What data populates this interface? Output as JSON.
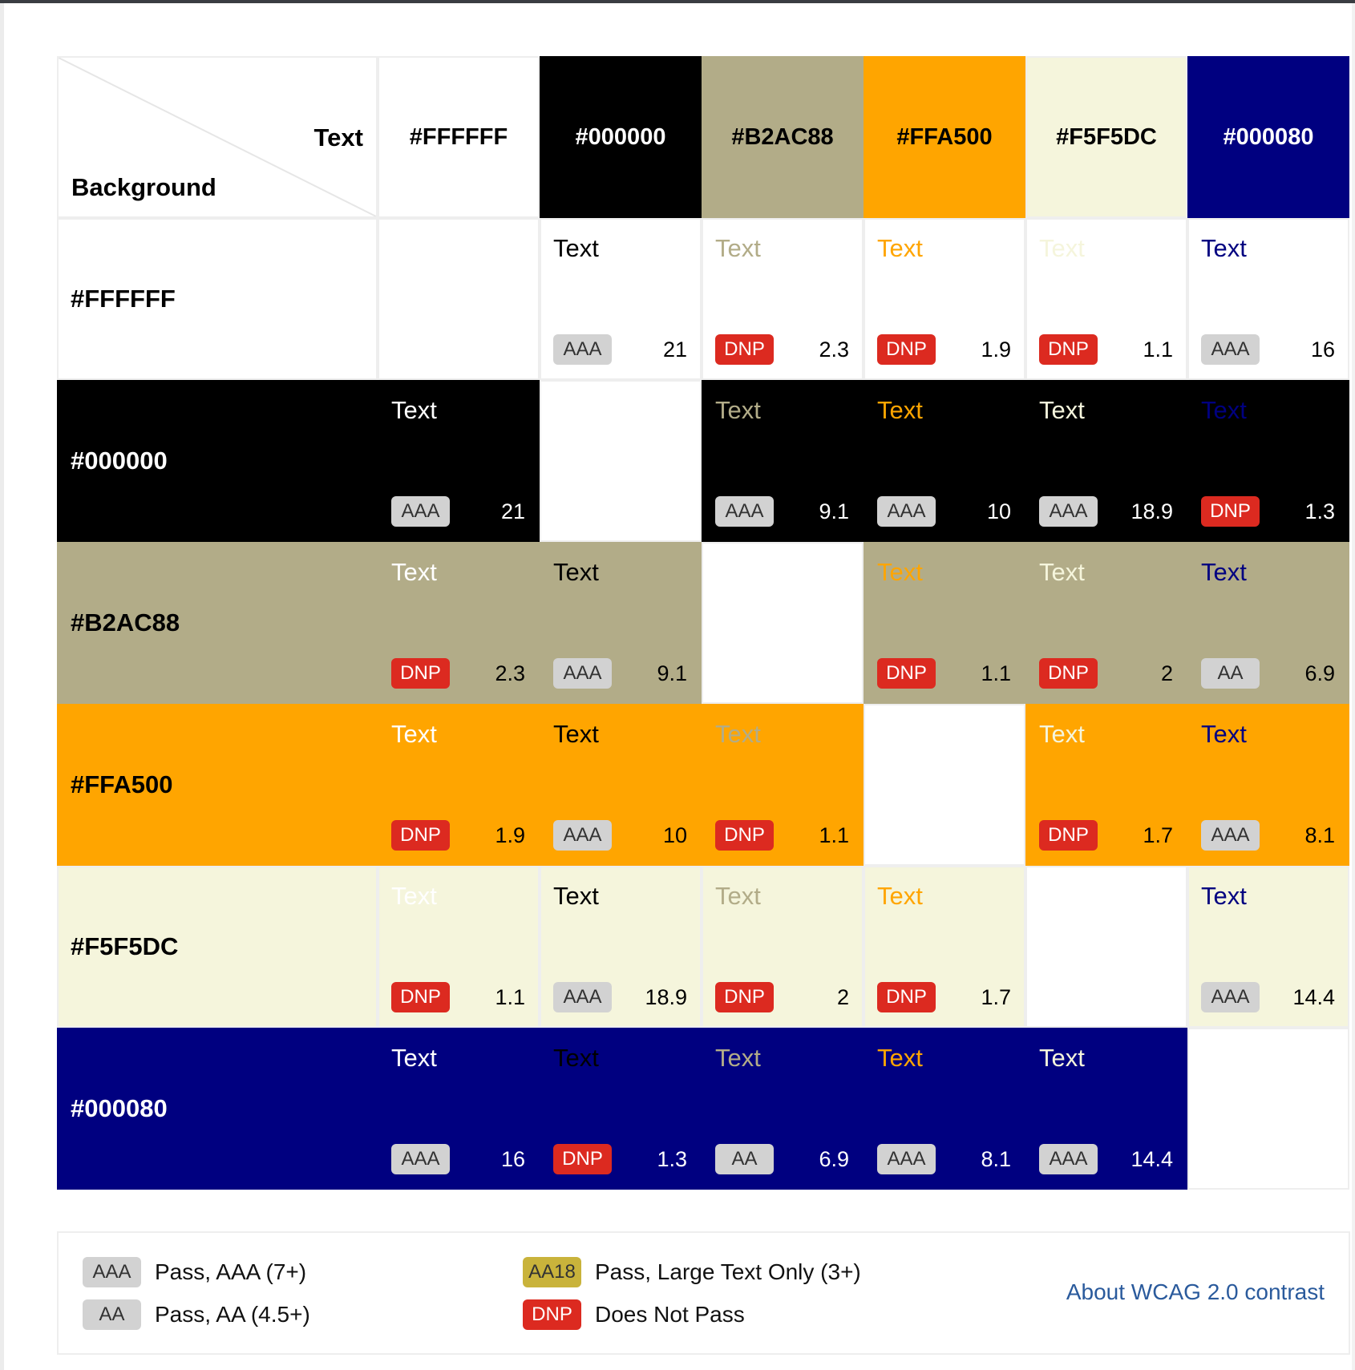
{
  "corner": {
    "text_label": "Text",
    "background_label": "Background"
  },
  "colors": [
    "#FFFFFF",
    "#000000",
    "#B2AC88",
    "#FFA500",
    "#F5F5DC",
    "#000080"
  ],
  "header_text_colors": [
    "#000000",
    "#FFFFFF",
    "#000000",
    "#000000",
    "#000000",
    "#FFFFFF"
  ],
  "sample_text": "Text",
  "badge_styles": {
    "pass": "#D2D2D2",
    "aa18": "#C9B33B",
    "dnp": "#DC2A20"
  },
  "matrix": [
    [
      null,
      {
        "badge": "AAA",
        "ratio": "21"
      },
      {
        "badge": "DNP",
        "ratio": "2.3"
      },
      {
        "badge": "DNP",
        "ratio": "1.9"
      },
      {
        "badge": "DNP",
        "ratio": "1.1"
      },
      {
        "badge": "AAA",
        "ratio": "16"
      }
    ],
    [
      {
        "badge": "AAA",
        "ratio": "21"
      },
      null,
      {
        "badge": "AAA",
        "ratio": "9.1"
      },
      {
        "badge": "AAA",
        "ratio": "10"
      },
      {
        "badge": "AAA",
        "ratio": "18.9"
      },
      {
        "badge": "DNP",
        "ratio": "1.3"
      }
    ],
    [
      {
        "badge": "DNP",
        "ratio": "2.3"
      },
      {
        "badge": "AAA",
        "ratio": "9.1"
      },
      null,
      {
        "badge": "DNP",
        "ratio": "1.1"
      },
      {
        "badge": "DNP",
        "ratio": "2"
      },
      {
        "badge": "AA",
        "ratio": "6.9"
      }
    ],
    [
      {
        "badge": "DNP",
        "ratio": "1.9"
      },
      {
        "badge": "AAA",
        "ratio": "10"
      },
      {
        "badge": "DNP",
        "ratio": "1.1"
      },
      null,
      {
        "badge": "DNP",
        "ratio": "1.7"
      },
      {
        "badge": "AAA",
        "ratio": "8.1"
      }
    ],
    [
      {
        "badge": "DNP",
        "ratio": "1.1"
      },
      {
        "badge": "AAA",
        "ratio": "18.9"
      },
      {
        "badge": "DNP",
        "ratio": "2"
      },
      {
        "badge": "DNP",
        "ratio": "1.7"
      },
      null,
      {
        "badge": "AAA",
        "ratio": "14.4"
      }
    ],
    [
      {
        "badge": "AAA",
        "ratio": "16"
      },
      {
        "badge": "DNP",
        "ratio": "1.3"
      },
      {
        "badge": "AA",
        "ratio": "6.9"
      },
      {
        "badge": "AAA",
        "ratio": "8.1"
      },
      {
        "badge": "AAA",
        "ratio": "14.4"
      },
      null
    ]
  ],
  "legend": {
    "aaa": {
      "badge": "AAA",
      "label": "Pass, AAA (7+)"
    },
    "aa": {
      "badge": "AA",
      "label": "Pass, AA (4.5+)"
    },
    "aa18": {
      "badge": "AA18",
      "label": "Pass, Large Text Only (3+)"
    },
    "dnp": {
      "badge": "DNP",
      "label": "Does Not Pass"
    }
  },
  "about_link": "About WCAG 2.0 contrast"
}
